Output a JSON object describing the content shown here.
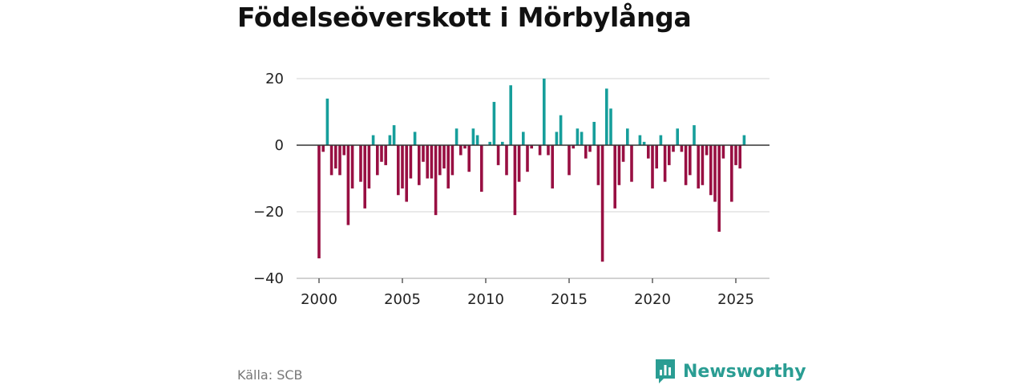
{
  "title": "Födelseöverskott i Mörbylånga",
  "source": "Källa: SCB",
  "brand": "Newsworthy",
  "colors": {
    "positive": "#169e9b",
    "negative": "#980f42",
    "grid": "#dcdcdc",
    "zero": "#333333",
    "brand": "#2a9d93"
  },
  "chart_data": {
    "type": "bar",
    "title": "Födelseöverskott i Mörbylånga",
    "xlabel": "",
    "ylabel": "",
    "ylim": [
      -40,
      20
    ],
    "yticks": [
      20,
      0,
      -20,
      -40
    ],
    "ytick_labels": [
      "20",
      "0",
      "−20",
      "−40"
    ],
    "xlim": [
      2000,
      2025.75
    ],
    "xticks": [
      2000,
      2005,
      2010,
      2015,
      2020,
      2025
    ],
    "xtick_labels": [
      "2000",
      "2005",
      "2010",
      "2015",
      "2020",
      "2025"
    ],
    "period": "quarterly",
    "x": [
      2000.0,
      2000.25,
      2000.5,
      2000.75,
      2001.0,
      2001.25,
      2001.5,
      2001.75,
      2002.0,
      2002.25,
      2002.5,
      2002.75,
      2003.0,
      2003.25,
      2003.5,
      2003.75,
      2004.0,
      2004.25,
      2004.5,
      2004.75,
      2005.0,
      2005.25,
      2005.5,
      2005.75,
      2006.0,
      2006.25,
      2006.5,
      2006.75,
      2007.0,
      2007.25,
      2007.5,
      2007.75,
      2008.0,
      2008.25,
      2008.5,
      2008.75,
      2009.0,
      2009.25,
      2009.5,
      2009.75,
      2010.0,
      2010.25,
      2010.5,
      2010.75,
      2011.0,
      2011.25,
      2011.5,
      2011.75,
      2012.0,
      2012.25,
      2012.5,
      2012.75,
      2013.0,
      2013.25,
      2013.5,
      2013.75,
      2014.0,
      2014.25,
      2014.5,
      2014.75,
      2015.0,
      2015.25,
      2015.5,
      2015.75,
      2016.0,
      2016.25,
      2016.5,
      2016.75,
      2017.0,
      2017.25,
      2017.5,
      2017.75,
      2018.0,
      2018.25,
      2018.5,
      2018.75,
      2019.0,
      2019.25,
      2019.5,
      2019.75,
      2020.0,
      2020.25,
      2020.5,
      2020.75,
      2021.0,
      2021.25,
      2021.5,
      2021.75,
      2022.0,
      2022.25,
      2022.5,
      2022.75,
      2023.0,
      2023.25,
      2023.5,
      2023.75,
      2024.0,
      2024.25,
      2024.5,
      2024.75,
      2025.0,
      2025.25,
      2025.5
    ],
    "values": [
      -34,
      -2,
      14,
      -9,
      -7,
      -9,
      -3,
      -24,
      -13,
      0,
      -11,
      -19,
      -13,
      3,
      -9,
      -5,
      -6,
      3,
      6,
      -15,
      -13,
      -17,
      -10,
      4,
      -12,
      -5,
      -10,
      -10,
      -21,
      -9,
      -7,
      -13,
      -9,
      5,
      -3,
      -1,
      -8,
      5,
      3,
      -14,
      0,
      1,
      13,
      -6,
      1,
      -9,
      18,
      -21,
      -11,
      4,
      -8,
      -1,
      0,
      -3,
      20,
      -3,
      -13,
      4,
      9,
      0,
      -9,
      -1,
      5,
      4,
      -4,
      -2,
      7,
      -12,
      -35,
      17,
      11,
      -19,
      -12,
      -5,
      5,
      -11,
      0,
      3,
      1,
      -4,
      -13,
      -7,
      3,
      -11,
      -6,
      -2,
      5,
      -2,
      -12,
      -9,
      6,
      -13,
      -12,
      -3,
      -15,
      -17,
      -26,
      -4,
      0,
      -17,
      -6,
      -7,
      3
    ]
  }
}
